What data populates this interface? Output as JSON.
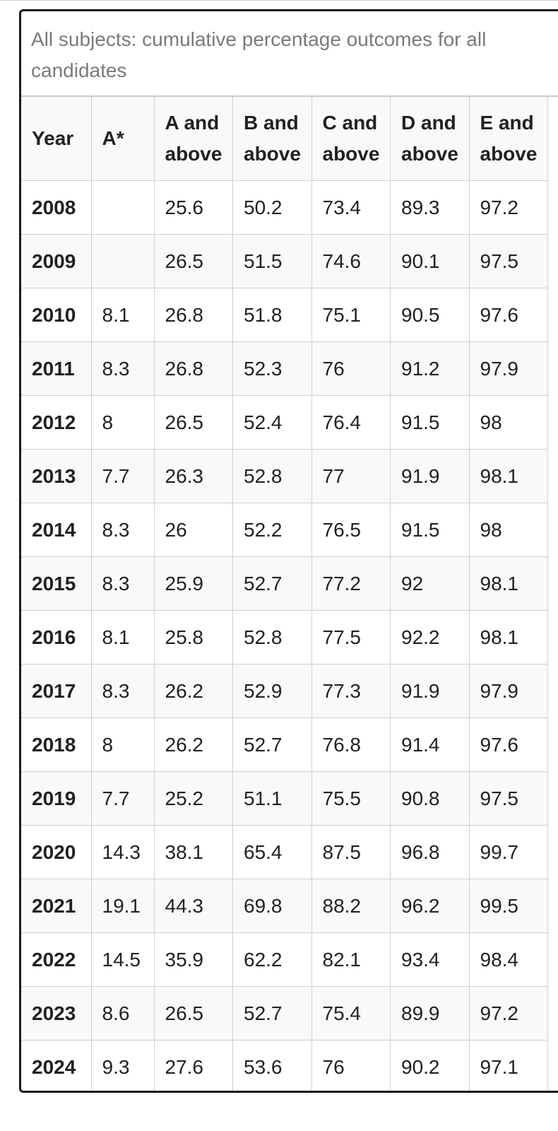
{
  "table": {
    "caption": "All subjects: cumulative percentage outcomes for all candidates",
    "headers": [
      "Year",
      "A*",
      "A and above",
      "B and above",
      "C and above",
      "D and above",
      "E and above"
    ],
    "rows": [
      [
        "2008",
        "",
        "25.6",
        "50.2",
        "73.4",
        "89.3",
        "97.2"
      ],
      [
        "2009",
        "",
        "26.5",
        "51.5",
        "74.6",
        "90.1",
        "97.5"
      ],
      [
        "2010",
        "8.1",
        "26.8",
        "51.8",
        "75.1",
        "90.5",
        "97.6"
      ],
      [
        "2011",
        "8.3",
        "26.8",
        "52.3",
        "76",
        "91.2",
        "97.9"
      ],
      [
        "2012",
        "8",
        "26.5",
        "52.4",
        "76.4",
        "91.5",
        "98"
      ],
      [
        "2013",
        "7.7",
        "26.3",
        "52.8",
        "77",
        "91.9",
        "98.1"
      ],
      [
        "2014",
        "8.3",
        "26",
        "52.2",
        "76.5",
        "91.5",
        "98"
      ],
      [
        "2015",
        "8.3",
        "25.9",
        "52.7",
        "77.2",
        "92",
        "98.1"
      ],
      [
        "2016",
        "8.1",
        "25.8",
        "52.8",
        "77.5",
        "92.2",
        "98.1"
      ],
      [
        "2017",
        "8.3",
        "26.2",
        "52.9",
        "77.3",
        "91.9",
        "97.9"
      ],
      [
        "2018",
        "8",
        "26.2",
        "52.7",
        "76.8",
        "91.4",
        "97.6"
      ],
      [
        "2019",
        "7.7",
        "25.2",
        "51.1",
        "75.5",
        "90.8",
        "97.5"
      ],
      [
        "2020",
        "14.3",
        "38.1",
        "65.4",
        "87.5",
        "96.8",
        "99.7"
      ],
      [
        "2021",
        "19.1",
        "44.3",
        "69.8",
        "88.2",
        "96.2",
        "99.5"
      ],
      [
        "2022",
        "14.5",
        "35.9",
        "62.2",
        "82.1",
        "93.4",
        "98.4"
      ],
      [
        "2023",
        "8.6",
        "26.5",
        "52.7",
        "75.4",
        "89.9",
        "97.2"
      ],
      [
        "2024",
        "9.3",
        "27.6",
        "53.6",
        "76",
        "90.2",
        "97.1"
      ]
    ]
  }
}
